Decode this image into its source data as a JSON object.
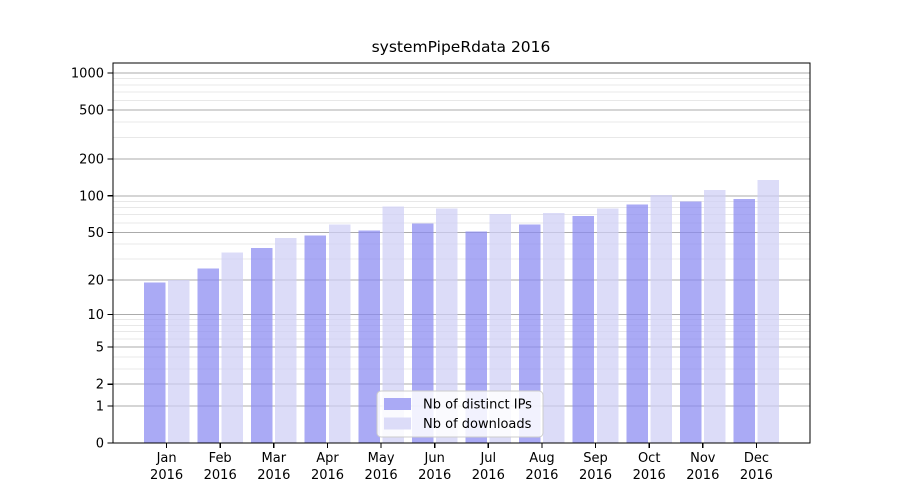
{
  "title": "systemPipeRdata 2016",
  "legend": {
    "items": [
      {
        "label": "Nb of distinct IPs",
        "color": "#aaaaf5"
      },
      {
        "label": "Nb of downloads",
        "color": "#dcdcf8"
      }
    ]
  },
  "chart_data": {
    "type": "bar",
    "title": "systemPipeRdata 2016",
    "categories": [
      "Jan",
      "Feb",
      "Mar",
      "Apr",
      "May",
      "Jun",
      "Jul",
      "Aug",
      "Sep",
      "Oct",
      "Nov",
      "Dec"
    ],
    "category_year": "2016",
    "series": [
      {
        "name": "Nb of distinct IPs",
        "color": "#aaaaf5",
        "base_color": "#8989f1",
        "values": [
          19,
          25,
          37,
          47,
          52,
          59,
          51,
          58,
          68,
          85,
          90,
          94
        ]
      },
      {
        "name": "Nb of downloads",
        "color": "#dcdcf8",
        "base_color": "#cecef5",
        "values": [
          20,
          34,
          45,
          58,
          82,
          79,
          71,
          72,
          79,
          102,
          112,
          135
        ]
      }
    ],
    "yscale": "log1p",
    "ylim": [
      0,
      1000
    ],
    "yticks_major": [
      0,
      1,
      2,
      5,
      10,
      20,
      50,
      100,
      200,
      500,
      1000
    ],
    "yticks_minor": [
      3,
      4,
      6,
      7,
      8,
      9,
      30,
      40,
      60,
      70,
      80,
      90,
      300,
      400,
      600,
      700,
      800,
      900
    ],
    "grid": true,
    "legend_position": "lower center"
  },
  "colors": {
    "background": "#ffffff",
    "axis": "#000000",
    "major_grid": "#ababab",
    "minor_grid": "#e8e8e8",
    "text": "#000000"
  }
}
